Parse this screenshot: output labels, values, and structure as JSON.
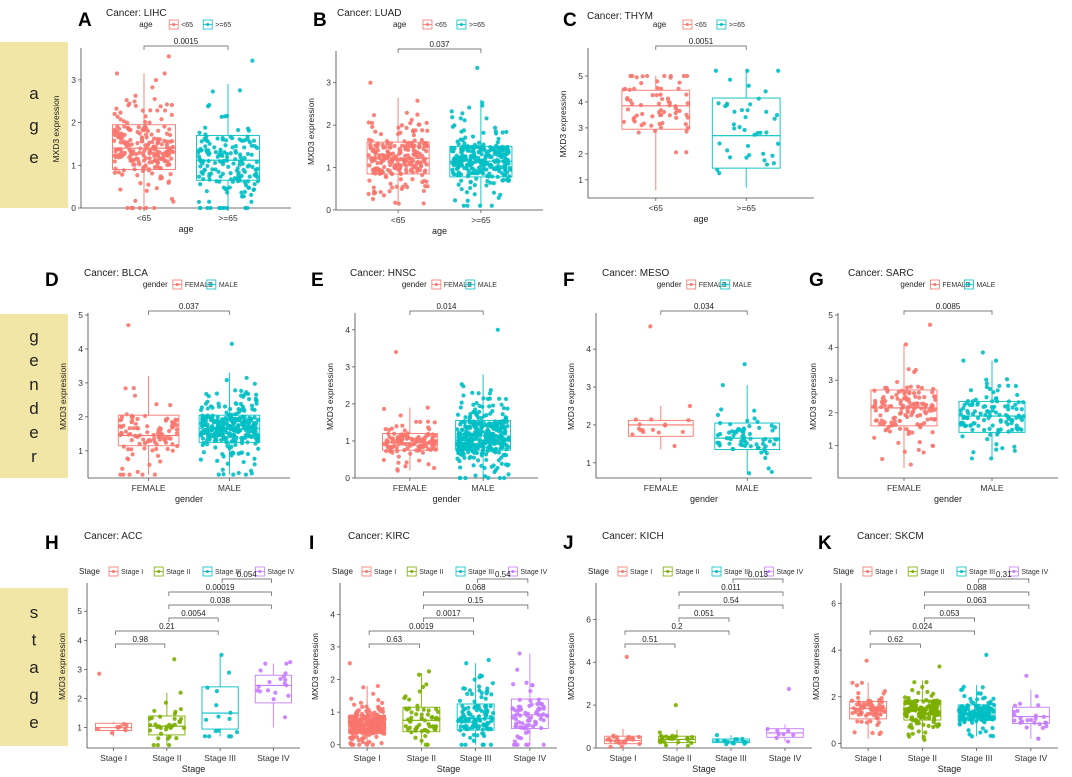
{
  "sections": [
    {
      "label": "age",
      "letters": [
        "a",
        "g",
        "e"
      ]
    },
    {
      "label": "gender",
      "letters": [
        "g",
        "e",
        "n",
        "d",
        "e",
        "r"
      ]
    },
    {
      "label": "stage",
      "letters": [
        "s",
        "t",
        "a",
        "g",
        "e"
      ]
    }
  ],
  "colors": {
    "c1": "#F8766D",
    "c2": "#00BFC4",
    "s1": "#F8766D",
    "s2": "#7CAE00",
    "s3": "#00BFC4",
    "s4": "#C77CFF",
    "sidebar": "#F2E6A6"
  },
  "chart_data": [
    {
      "letter": "A",
      "type": "box",
      "title": "Cancer: LIHC",
      "legend_title": "age",
      "xlabel": "age",
      "ylabel": "MXD3 expression",
      "categories": [
        "<65",
        ">=65"
      ],
      "ylim": [
        0,
        3.7
      ],
      "yticks": [
        0,
        1,
        2,
        3
      ],
      "stats": [
        {
          "q1": 0.9,
          "med": 1.4,
          "q3": 1.95,
          "lo": 0.0,
          "hi": 3.15,
          "n": 230,
          "max": 3.55
        },
        {
          "q1": 0.65,
          "med": 1.12,
          "q3": 1.7,
          "lo": 0.0,
          "hi": 2.9,
          "n": 170,
          "max": 3.45
        }
      ],
      "comparisons": [
        {
          "from": 0,
          "to": 1,
          "p": "0.0015"
        }
      ]
    },
    {
      "letter": "B",
      "type": "box",
      "title": "Cancer: LUAD",
      "legend_title": "age",
      "xlabel": "age",
      "ylabel": "MXD3 expression",
      "categories": [
        "<65",
        ">=65"
      ],
      "ylim": [
        0,
        3.7
      ],
      "yticks": [
        0,
        1,
        2,
        3
      ],
      "stats": [
        {
          "q1": 0.85,
          "med": 1.22,
          "q3": 1.6,
          "lo": 0.15,
          "hi": 2.65,
          "n": 240,
          "max": 3.0
        },
        {
          "q1": 0.78,
          "med": 1.15,
          "q3": 1.5,
          "lo": 0.1,
          "hi": 2.6,
          "n": 280,
          "max": 3.35
        }
      ],
      "comparisons": [
        {
          "from": 0,
          "to": 1,
          "p": "0.037"
        }
      ]
    },
    {
      "letter": "C",
      "type": "box",
      "title": "Cancer: THYM",
      "legend_title": "age",
      "xlabel": "age",
      "ylabel": "MXD3 expression",
      "categories": [
        "<65",
        ">=65"
      ],
      "ylim": [
        0.3,
        6.0
      ],
      "yticks": [
        1,
        2,
        3,
        4,
        5
      ],
      "stats": [
        {
          "q1": 2.95,
          "med": 3.85,
          "q3": 4.45,
          "lo": 0.6,
          "hi": 5.0,
          "n": 70,
          "max": 5.0
        },
        {
          "q1": 1.45,
          "med": 2.7,
          "q3": 4.15,
          "lo": 0.7,
          "hi": 5.2,
          "n": 40,
          "max": 5.2
        }
      ],
      "comparisons": [
        {
          "from": 0,
          "to": 1,
          "p": "0.0051"
        }
      ]
    },
    {
      "letter": "D",
      "type": "box",
      "title": "Cancer: BLCA",
      "legend_title": "gender",
      "xlabel": "gender",
      "ylabel": "MXD3 expression",
      "categories": [
        "FEMALE",
        "MALE"
      ],
      "ylim": [
        0.2,
        5.0
      ],
      "yticks": [
        1,
        2,
        3,
        4,
        5
      ],
      "stats": [
        {
          "q1": 1.15,
          "med": 1.45,
          "q3": 2.05,
          "lo": 0.3,
          "hi": 3.2,
          "n": 100,
          "max": 4.7
        },
        {
          "q1": 1.25,
          "med": 1.65,
          "q3": 2.05,
          "lo": 0.3,
          "hi": 3.3,
          "n": 300,
          "max": 4.15
        }
      ],
      "comparisons": [
        {
          "from": 0,
          "to": 1,
          "p": "0.037"
        }
      ]
    },
    {
      "letter": "E",
      "type": "box",
      "title": "Cancer: HNSC",
      "legend_title": "gender",
      "xlabel": "gender",
      "ylabel": "MXD3 expression",
      "categories": [
        "FEMALE",
        "MALE"
      ],
      "ylim": [
        0,
        4.4
      ],
      "yticks": [
        0,
        1,
        2,
        3,
        4
      ],
      "stats": [
        {
          "q1": 0.75,
          "med": 0.95,
          "q3": 1.2,
          "lo": 0.2,
          "hi": 1.9,
          "n": 130,
          "max": 3.4
        },
        {
          "q1": 0.75,
          "med": 1.02,
          "q3": 1.55,
          "lo": 0.0,
          "hi": 2.8,
          "n": 370,
          "max": 4.0
        }
      ],
      "comparisons": [
        {
          "from": 0,
          "to": 1,
          "p": "0.014"
        }
      ]
    },
    {
      "letter": "F",
      "type": "box",
      "title": "Cancer: MESO",
      "legend_title": "gender",
      "xlabel": "gender",
      "ylabel": "MXD3 expression",
      "categories": [
        "FEMALE",
        "MALE"
      ],
      "ylim": [
        0.6,
        4.9
      ],
      "yticks": [
        1,
        2,
        3,
        4
      ],
      "stats": [
        {
          "q1": 1.7,
          "med": 2.0,
          "q3": 2.12,
          "lo": 1.35,
          "hi": 2.5,
          "n": 16,
          "max": 4.6
        },
        {
          "q1": 1.35,
          "med": 1.65,
          "q3": 2.05,
          "lo": 0.7,
          "hi": 3.05,
          "n": 70,
          "max": 3.6
        }
      ],
      "comparisons": [
        {
          "from": 0,
          "to": 1,
          "p": "0.034"
        }
      ]
    },
    {
      "letter": "G",
      "type": "box",
      "title": "Cancer: SARC",
      "legend_title": "gender",
      "xlabel": "gender",
      "ylabel": "MXD3 expression",
      "categories": [
        "FEMALE",
        "MALE"
      ],
      "ylim": [
        0,
        5.0
      ],
      "yticks": [
        1,
        2,
        3,
        4,
        5
      ],
      "stats": [
        {
          "q1": 1.6,
          "med": 2.15,
          "q3": 2.7,
          "lo": 0.3,
          "hi": 4.1,
          "n": 140,
          "max": 4.7
        },
        {
          "q1": 1.4,
          "med": 1.9,
          "q3": 2.35,
          "lo": 0.6,
          "hi": 3.6,
          "n": 120,
          "max": 3.85
        }
      ],
      "comparisons": [
        {
          "from": 0,
          "to": 1,
          "p": "0.0085"
        }
      ]
    },
    {
      "letter": "H",
      "type": "box",
      "title": "Cancer: ACC",
      "legend_title": "Stage",
      "xlabel": "Stage",
      "ylabel": "MXD3 expression",
      "categories": [
        "Stage I",
        "Stage II",
        "Stage III",
        "Stage IV"
      ],
      "legend": [
        "Stage I",
        "Stage II",
        "Stage III",
        "Stage IV"
      ],
      "ylim": [
        0.3,
        5.9
      ],
      "yticks": [
        1,
        2,
        3,
        4,
        5
      ],
      "stats": [
        {
          "q1": 0.9,
          "med": 1.0,
          "q3": 1.15,
          "lo": 0.7,
          "hi": 1.2,
          "n": 9,
          "max": 2.85
        },
        {
          "q1": 0.75,
          "med": 1.05,
          "q3": 1.4,
          "lo": 0.4,
          "hi": 2.2,
          "n": 35,
          "max": 3.35
        },
        {
          "q1": 0.95,
          "med": 1.5,
          "q3": 2.4,
          "lo": 0.7,
          "hi": 3.5,
          "n": 15,
          "max": 3.5
        },
        {
          "q1": 1.85,
          "med": 2.45,
          "q3": 2.8,
          "lo": 1.0,
          "hi": 3.2,
          "n": 18,
          "max": 3.25
        }
      ],
      "comparisons": [
        {
          "from": 0,
          "to": 1,
          "p": "0.98"
        },
        {
          "from": 0,
          "to": 2,
          "p": "0.21"
        },
        {
          "from": 1,
          "to": 2,
          "p": "0.0054"
        },
        {
          "from": 1,
          "to": 3,
          "p": "0.038"
        },
        {
          "from": 1,
          "to": 3,
          "p": "0.00019"
        },
        {
          "from": 2,
          "to": 3,
          "p": "0.054"
        }
      ]
    },
    {
      "letter": "I",
      "type": "box",
      "title": "Cancer: KIRC",
      "legend_title": "Stage",
      "xlabel": "Stage",
      "ylabel": "MXD3 expression",
      "categories": [
        "Stage I",
        "Stage II",
        "Stage III",
        "Stage IV"
      ],
      "legend": [
        "Stage I",
        "Stage II",
        "Stage III",
        "Stage IV"
      ],
      "ylim": [
        -0.1,
        4.9
      ],
      "yticks": [
        0,
        1,
        2,
        3,
        4
      ],
      "stats": [
        {
          "q1": 0.35,
          "med": 0.6,
          "q3": 0.9,
          "lo": 0.0,
          "hi": 1.8,
          "n": 260,
          "max": 2.5
        },
        {
          "q1": 0.4,
          "med": 0.75,
          "q3": 1.15,
          "lo": 0.0,
          "hi": 2.2,
          "n": 60,
          "max": 2.25
        },
        {
          "q1": 0.45,
          "med": 0.8,
          "q3": 1.25,
          "lo": 0.0,
          "hi": 2.5,
          "n": 120,
          "max": 2.6
        },
        {
          "q1": 0.5,
          "med": 0.92,
          "q3": 1.4,
          "lo": 0.0,
          "hi": 2.8,
          "n": 80,
          "max": 2.8
        }
      ],
      "comparisons": [
        {
          "from": 0,
          "to": 1,
          "p": "0.63"
        },
        {
          "from": 0,
          "to": 2,
          "p": "0.0019"
        },
        {
          "from": 1,
          "to": 2,
          "p": "0.0017"
        },
        {
          "from": 1,
          "to": 3,
          "p": "0.15"
        },
        {
          "from": 1,
          "to": 3,
          "p": "0.068"
        },
        {
          "from": 2,
          "to": 3,
          "p": "0.54"
        }
      ]
    },
    {
      "letter": "J",
      "type": "box",
      "title": "Cancer: KICH",
      "legend_title": "Stage",
      "xlabel": "Stage",
      "ylabel": "MXD3 expression",
      "categories": [
        "Stage I",
        "Stage II",
        "Stage III",
        "Stage IV"
      ],
      "legend": [
        "Stage I",
        "Stage II",
        "Stage III",
        "Stage IV"
      ],
      "ylim": [
        0,
        7.6
      ],
      "yticks": [
        0,
        2,
        4,
        6
      ],
      "stats": [
        {
          "q1": 0.2,
          "med": 0.35,
          "q3": 0.55,
          "lo": 0.05,
          "hi": 0.9,
          "n": 22,
          "max": 4.25
        },
        {
          "q1": 0.25,
          "med": 0.4,
          "q3": 0.55,
          "lo": 0.1,
          "hi": 0.85,
          "n": 25,
          "max": 2.0
        },
        {
          "q1": 0.25,
          "med": 0.32,
          "q3": 0.42,
          "lo": 0.15,
          "hi": 0.6,
          "n": 14,
          "max": 0.6
        },
        {
          "q1": 0.5,
          "med": 0.7,
          "q3": 0.9,
          "lo": 0.3,
          "hi": 1.1,
          "n": 8,
          "max": 2.75
        }
      ],
      "comparisons": [
        {
          "from": 0,
          "to": 1,
          "p": "0.51"
        },
        {
          "from": 0,
          "to": 2,
          "p": "0.2"
        },
        {
          "from": 1,
          "to": 2,
          "p": "0.051"
        },
        {
          "from": 1,
          "to": 3,
          "p": "0.54"
        },
        {
          "from": 1,
          "to": 3,
          "p": "0.011"
        },
        {
          "from": 2,
          "to": 3,
          "p": "0.013"
        }
      ]
    },
    {
      "letter": "K",
      "type": "box",
      "title": "Cancer: SKCM",
      "legend_title": "Stage",
      "xlabel": "Stage",
      "ylabel": "MXD3 expression",
      "categories": [
        "Stage I",
        "Stage II",
        "Stage III",
        "Stage IV"
      ],
      "legend": [
        "Stage I",
        "Stage II",
        "Stage III",
        "Stage IV"
      ],
      "ylim": [
        -0.2,
        6.8
      ],
      "yticks": [
        0,
        2,
        4,
        6
      ],
      "stats": [
        {
          "q1": 1.05,
          "med": 1.5,
          "q3": 1.8,
          "lo": 0.2,
          "hi": 2.6,
          "n": 75,
          "max": 3.55
        },
        {
          "q1": 1.0,
          "med": 1.4,
          "q3": 1.85,
          "lo": 0.15,
          "hi": 2.7,
          "n": 150,
          "max": 3.3
        },
        {
          "q1": 1.0,
          "med": 1.3,
          "q3": 1.65,
          "lo": 0.3,
          "hi": 2.5,
          "n": 160,
          "max": 3.8
        },
        {
          "q1": 0.85,
          "med": 1.15,
          "q3": 1.55,
          "lo": 0.2,
          "hi": 2.3,
          "n": 25,
          "max": 2.9
        }
      ],
      "comparisons": [
        {
          "from": 0,
          "to": 1,
          "p": "0.62"
        },
        {
          "from": 0,
          "to": 2,
          "p": "0.024"
        },
        {
          "from": 1,
          "to": 2,
          "p": "0.053"
        },
        {
          "from": 1,
          "to": 3,
          "p": "0.063"
        },
        {
          "from": 1,
          "to": 3,
          "p": "0.088"
        },
        {
          "from": 2,
          "to": 3,
          "p": "0.31"
        }
      ]
    }
  ]
}
